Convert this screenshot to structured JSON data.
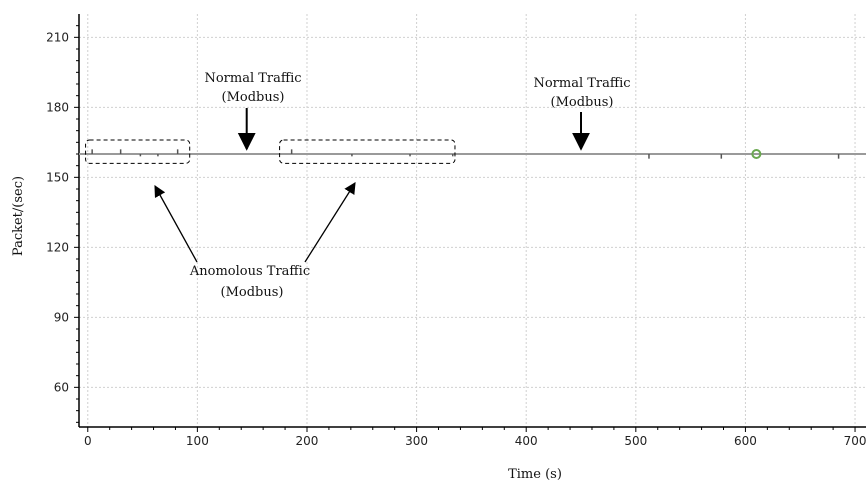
{
  "chart_data": {
    "type": "line",
    "title": "",
    "xlabel": "Time (s)",
    "ylabel": "Packet/(sec)",
    "xlim": [
      -8,
      710
    ],
    "ylim": [
      43,
      220
    ],
    "x_ticks": [
      0,
      100,
      200,
      300,
      400,
      500,
      600,
      700
    ],
    "y_ticks": [
      60,
      90,
      120,
      150,
      180,
      210
    ],
    "grid": true,
    "legend": "none",
    "series": [
      {
        "baseline": 160,
        "points": [
          {
            "x": 4,
            "y": 162
          },
          {
            "x": 30,
            "y": 162
          },
          {
            "x": 48,
            "y": 159
          },
          {
            "x": 64,
            "y": 159
          },
          {
            "x": 82,
            "y": 162
          },
          {
            "x": 186,
            "y": 162
          },
          {
            "x": 241,
            "y": 159
          },
          {
            "x": 294,
            "y": 159
          },
          {
            "x": 333,
            "y": 159
          },
          {
            "x": 512,
            "y": 158
          },
          {
            "x": 578,
            "y": 158
          },
          {
            "x": 685,
            "y": 158
          }
        ],
        "marker": {
          "x": 610,
          "y": 160
        }
      }
    ],
    "annotations": {
      "normal_1": {
        "line1": "Normal Traffic",
        "line2": "(Modbus)",
        "arrow_x": 145
      },
      "normal_2": {
        "line1": "Normal Traffic",
        "line2": "(Modbus)",
        "arrow_x": 450
      },
      "anomalous": {
        "line1": "Anomolous Traffic",
        "line2": "(Modbus)"
      },
      "boxes": [
        {
          "x0": -2,
          "x1": 93,
          "y0": 156,
          "y1": 166
        },
        {
          "x0": 175,
          "x1": 335,
          "y0": 156,
          "y1": 166
        }
      ]
    },
    "colors": {
      "line": "#9a9a9a",
      "spike": "#555555",
      "grid": "#d0d0d0",
      "marker": "#6aa84f",
      "axis": "#000000"
    }
  }
}
